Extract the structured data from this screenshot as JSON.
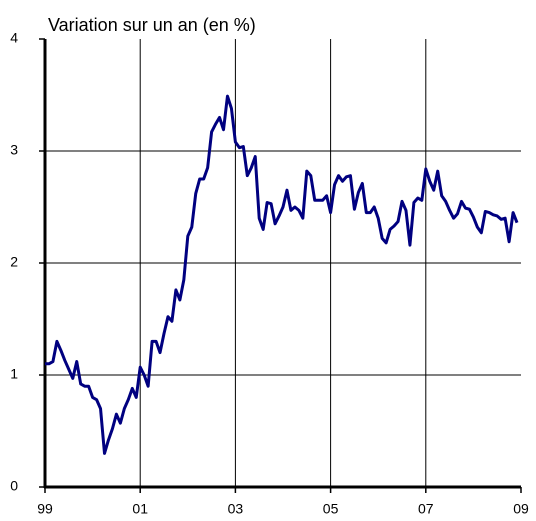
{
  "chart_data": {
    "type": "line",
    "title": "Variation sur un an (en %)",
    "categories": [
      "99",
      null,
      null,
      null,
      null,
      null,
      null,
      null,
      null,
      null,
      null,
      null,
      null,
      null,
      null,
      null,
      null,
      null,
      null,
      null,
      null,
      null,
      null,
      null,
      "01",
      null,
      null,
      null,
      null,
      null,
      null,
      null,
      null,
      null,
      null,
      null,
      null,
      null,
      null,
      null,
      null,
      null,
      null,
      null,
      null,
      null,
      null,
      null,
      "03",
      null,
      null,
      null,
      null,
      null,
      null,
      null,
      null,
      null,
      null,
      null,
      null,
      null,
      null,
      null,
      null,
      null,
      null,
      null,
      null,
      null,
      null,
      null,
      "05",
      null,
      null,
      null,
      null,
      null,
      null,
      null,
      null,
      null,
      null,
      null,
      null,
      null,
      null,
      null,
      null,
      null,
      null,
      null,
      null,
      null,
      null,
      null,
      "07",
      null,
      null,
      null,
      null,
      null,
      null,
      null,
      null,
      null,
      null,
      null,
      null,
      null,
      null,
      null,
      null,
      null,
      null,
      null,
      null,
      null,
      null,
      null,
      "09"
    ],
    "series": [
      {
        "color": "#000080",
        "values": [
          1.1,
          1.1,
          1.12,
          1.3,
          1.22,
          1.13,
          1.05,
          0.97,
          1.12,
          0.92,
          0.9,
          0.9,
          0.8,
          0.78,
          0.7,
          0.3,
          0.42,
          0.52,
          0.65,
          0.57,
          0.7,
          0.78,
          0.88,
          0.8,
          1.07,
          1.0,
          0.9,
          1.3,
          1.3,
          1.2,
          1.37,
          1.52,
          1.48,
          1.76,
          1.67,
          1.85,
          2.24,
          2.32,
          2.62,
          2.75,
          2.75,
          2.85,
          3.17,
          3.24,
          3.3,
          3.19,
          3.49,
          3.38,
          3.08,
          3.03,
          3.04,
          2.78,
          2.85,
          2.95,
          2.4,
          2.3,
          2.54,
          2.53,
          2.35,
          2.42,
          2.5,
          2.65,
          2.47,
          2.5,
          2.47,
          2.4,
          2.82,
          2.78,
          2.56,
          2.56,
          2.56,
          2.6,
          2.45,
          2.7,
          2.78,
          2.73,
          2.77,
          2.78,
          2.48,
          2.63,
          2.71,
          2.45,
          2.45,
          2.5,
          2.4,
          2.22,
          2.18,
          2.3,
          2.33,
          2.37,
          2.55,
          2.47,
          2.16,
          2.54,
          2.58,
          2.56,
          2.84,
          2.73,
          2.65,
          2.82,
          2.6,
          2.55,
          2.47,
          2.4,
          2.44,
          2.55,
          2.49,
          2.48,
          2.41,
          2.32,
          2.27,
          2.46,
          2.45,
          2.43,
          2.42,
          2.39,
          2.4,
          2.19,
          2.45,
          2.36,
          null
        ]
      }
    ],
    "ylim": [
      0,
      4
    ],
    "yticks": [
      0,
      1,
      2,
      3,
      4
    ],
    "grid": true
  }
}
